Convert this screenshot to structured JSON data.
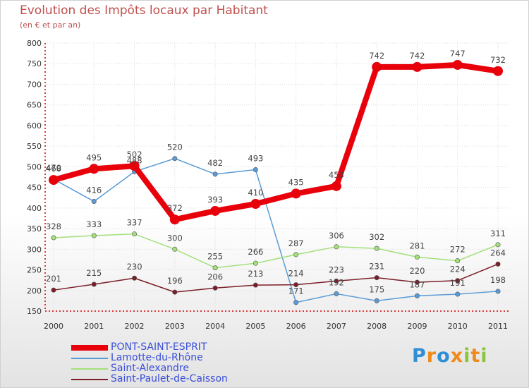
{
  "title": "Evolution des Impôts locaux par Habitant",
  "subtitle": "(en € et par an)",
  "logo": {
    "text": "Proxiti",
    "colors": [
      "#2e8fd6",
      "#f08a1c",
      "#2e8fd6",
      "#f08a1c",
      "#8cc63f",
      "#f08a1c",
      "#8cc63f"
    ]
  },
  "chart_data": {
    "type": "line",
    "x": [
      "2000",
      "2001",
      "2002",
      "2003",
      "2004",
      "2005",
      "2006",
      "2007",
      "2008",
      "2009",
      "2010",
      "2011"
    ],
    "ylim": [
      150,
      800
    ],
    "yticks": [
      "150",
      "200",
      "250",
      "300",
      "350",
      "400",
      "450",
      "500",
      "550",
      "600",
      "650",
      "700",
      "750",
      "800"
    ],
    "grid": true,
    "legend_position": "bottom-left",
    "series": [
      {
        "name": "PONT-SAINT-ESPRIT",
        "color": "#e8000b",
        "thick": true,
        "values": [
          468,
          495,
          502,
          372,
          393,
          410,
          435,
          453,
          742,
          742,
          747,
          732
        ]
      },
      {
        "name": "Lamotte-du-Rhône",
        "color": "#5b9bd5",
        "thick": false,
        "values": [
          470,
          416,
          488,
          520,
          482,
          493,
          171,
          192,
          175,
          187,
          191,
          198
        ]
      },
      {
        "name": "Saint-Alexandre",
        "color": "#a3e07a",
        "thick": false,
        "values": [
          328,
          333,
          337,
          300,
          255,
          266,
          287,
          306,
          302,
          281,
          272,
          311
        ]
      },
      {
        "name": "Saint-Paulet-de-Caisson",
        "color": "#7b1e28",
        "thick": false,
        "values": [
          201,
          215,
          230,
          196,
          206,
          213,
          214,
          223,
          231,
          220,
          224,
          264
        ]
      }
    ]
  }
}
